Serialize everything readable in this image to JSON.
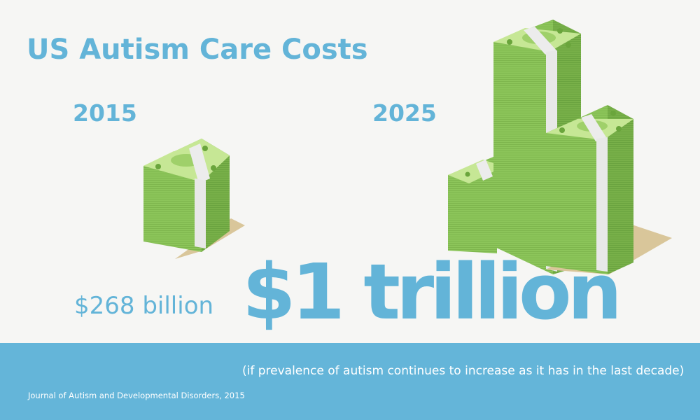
{
  "colors": {
    "accent": "#63b4d8",
    "band": "#64b5d9",
    "background": "#f6f6f4",
    "money_front": "#8dc65a",
    "money_side": "#79b24a",
    "money_top": "#c6e795",
    "money_strap": "#ececec",
    "shadow": "#d9c69a"
  },
  "title": "US Autism Care Costs",
  "years": {
    "left": "2015",
    "right": "2025"
  },
  "amounts": {
    "year_2015": "$268 billion",
    "year_2025": "$1 trillion"
  },
  "footnote": "(if prevalence of autism continues to increase as it has in the last decade)",
  "source": "Journal of Autism and Developmental Disorders, 2015",
  "icons": [
    "money-stack-icon"
  ]
}
